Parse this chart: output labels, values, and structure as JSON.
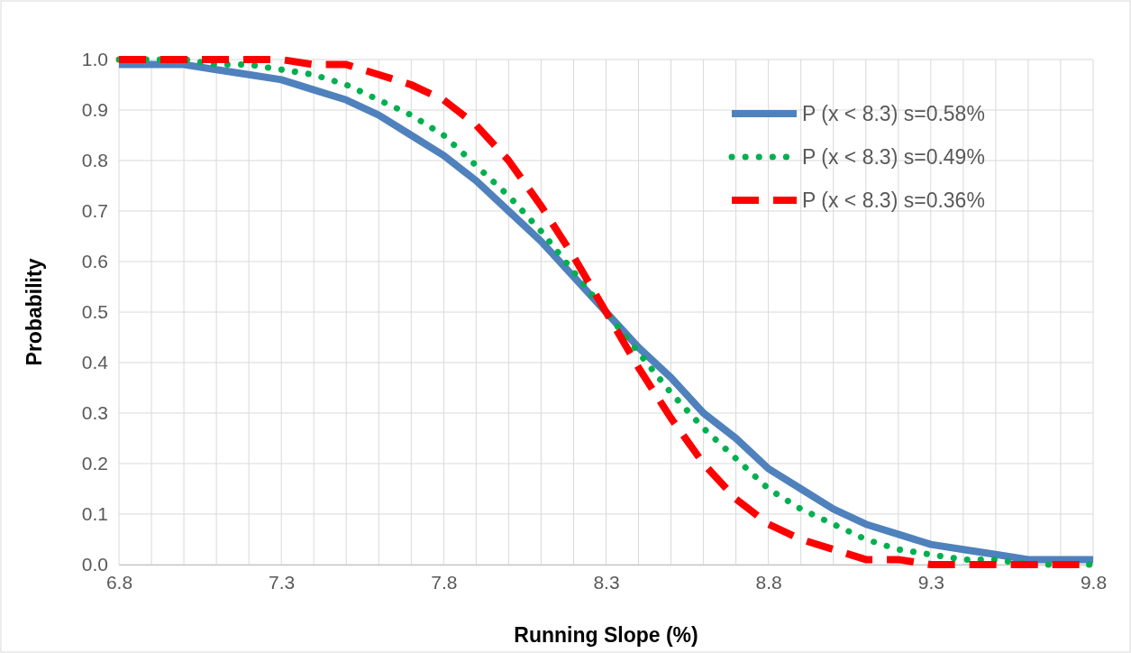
{
  "chart_data": {
    "type": "line",
    "xlabel": "Running Slope (%)",
    "ylabel": "Probability",
    "x": [
      6.8,
      6.9,
      7.0,
      7.1,
      7.2,
      7.3,
      7.4,
      7.5,
      7.6,
      7.7,
      7.8,
      7.9,
      8.0,
      8.1,
      8.2,
      8.3,
      8.4,
      8.5,
      8.6,
      8.7,
      8.8,
      8.9,
      9.0,
      9.1,
      9.2,
      9.3,
      9.4,
      9.5,
      9.6,
      9.7,
      9.8
    ],
    "series": [
      {
        "name": "P (x < 8.3) s=0.58%",
        "color": "#4f81bd",
        "line_style": "solid",
        "values": [
          0.99,
          0.99,
          0.99,
          0.98,
          0.97,
          0.96,
          0.94,
          0.92,
          0.89,
          0.85,
          0.81,
          0.76,
          0.7,
          0.64,
          0.57,
          0.5,
          0.43,
          0.37,
          0.3,
          0.25,
          0.19,
          0.15,
          0.11,
          0.08,
          0.06,
          0.04,
          0.03,
          0.02,
          0.01,
          0.01,
          0.01
        ]
      },
      {
        "name": "P (x < 8.3) s=0.49%",
        "color": "#00b050",
        "line_style": "dotted",
        "values": [
          1.0,
          1.0,
          1.0,
          0.99,
          0.99,
          0.98,
          0.97,
          0.95,
          0.92,
          0.89,
          0.85,
          0.79,
          0.73,
          0.66,
          0.58,
          0.5,
          0.42,
          0.34,
          0.27,
          0.21,
          0.15,
          0.11,
          0.08,
          0.05,
          0.03,
          0.02,
          0.01,
          0.01,
          0.0,
          0.0,
          0.0
        ]
      },
      {
        "name": "P (x < 8.3) s=0.36%",
        "color": "#ff0000",
        "line_style": "dashed",
        "values": [
          1.0,
          1.0,
          1.0,
          1.0,
          1.0,
          1.0,
          0.99,
          0.99,
          0.97,
          0.95,
          0.92,
          0.87,
          0.8,
          0.71,
          0.61,
          0.5,
          0.39,
          0.29,
          0.2,
          0.13,
          0.08,
          0.05,
          0.03,
          0.01,
          0.01,
          0.0,
          0.0,
          0.0,
          0.0,
          0.0,
          0.0
        ]
      }
    ],
    "xlim": [
      6.8,
      9.8
    ],
    "xticks": [
      6.8,
      {
        "value": 6.9,
        "label": null
      },
      {
        "value": 7.0,
        "label": null
      },
      {
        "value": 7.1,
        "label": null
      },
      {
        "value": 7.2,
        "label": null
      },
      7.3,
      {
        "value": 7.4,
        "label": null
      },
      {
        "value": 7.5,
        "label": null
      },
      {
        "value": 7.6,
        "label": null
      },
      {
        "value": 7.7,
        "label": null
      },
      7.8,
      {
        "value": 7.9,
        "label": null
      },
      {
        "value": 8.0,
        "label": null
      },
      {
        "value": 8.1,
        "label": null
      },
      {
        "value": 8.2,
        "label": null
      },
      8.3,
      {
        "value": 8.4,
        "label": null
      },
      {
        "value": 8.5,
        "label": null
      },
      {
        "value": 8.6,
        "label": null
      },
      {
        "value": 8.7,
        "label": null
      },
      8.8,
      {
        "value": 8.9,
        "label": null
      },
      {
        "value": 9.0,
        "label": null
      },
      {
        "value": 9.1,
        "label": null
      },
      {
        "value": 9.2,
        "label": null
      },
      9.3,
      {
        "value": 9.4,
        "label": null
      },
      {
        "value": 9.5,
        "label": null
      },
      {
        "value": 9.6,
        "label": null
      },
      {
        "value": 9.7,
        "label": null
      },
      9.8
    ],
    "ylim": [
      0,
      1
    ],
    "yticks": [
      {
        "value": 0,
        "label": "0.0"
      },
      0.1,
      0.2,
      0.3,
      0.4,
      0.5,
      0.6,
      0.7,
      0.8,
      0.9,
      {
        "value": 1,
        "label": "1.0"
      }
    ],
    "grid": true,
    "legend": "top right",
    "marker": "none"
  }
}
